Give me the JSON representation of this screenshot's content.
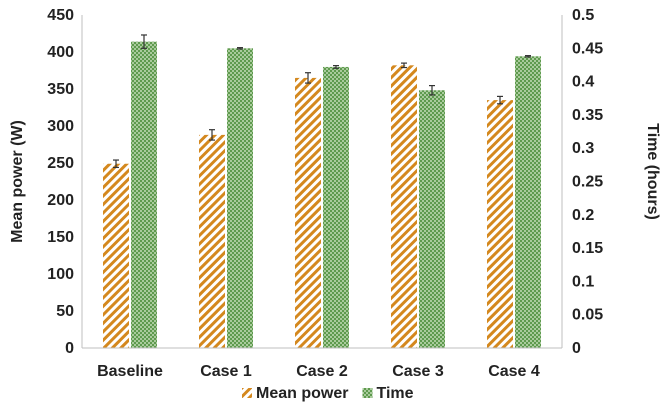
{
  "chart_data": {
    "type": "bar",
    "categories": [
      "Baseline",
      "Case 1",
      "Case 2",
      "Case 3",
      "Case 4"
    ],
    "series": [
      {
        "name": "Mean power",
        "axis": "left",
        "values": [
          249,
          288,
          365,
          382,
          335
        ],
        "errors": [
          5,
          7,
          7,
          3,
          5
        ],
        "color": "#D4881E",
        "pattern": "diagonal-stripes"
      },
      {
        "name": "Time",
        "axis": "right",
        "values": [
          0.46,
          0.45,
          0.422,
          0.387,
          0.438
        ],
        "errors": [
          0.01,
          0.001,
          0.002,
          0.007,
          0.001
        ],
        "color": "#5E9A4E",
        "pattern": "checkered"
      }
    ],
    "ylabel": "Mean power (W)",
    "ylabel_right": "Time (hours)",
    "xlabel": "",
    "ylim": [
      0,
      450
    ],
    "ylim_right": [
      0,
      0.5
    ],
    "yticks": [
      "0",
      "50",
      "100",
      "150",
      "200",
      "250",
      "300",
      "350",
      "400",
      "450"
    ],
    "yticks_right": [
      "0",
      "0.05",
      "0.1",
      "0.15",
      "0.2",
      "0.25",
      "0.3",
      "0.35",
      "0.4",
      "0.45",
      "0.5"
    ],
    "legend_position": "bottom",
    "grid": false
  }
}
